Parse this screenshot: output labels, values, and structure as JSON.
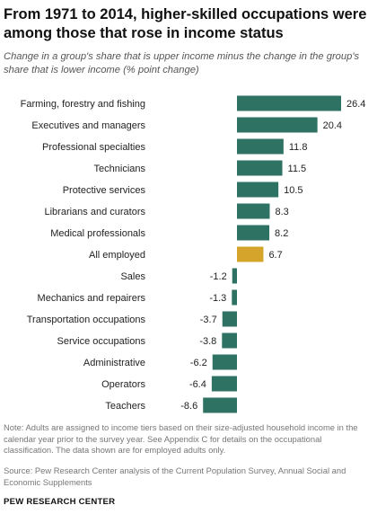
{
  "title": "From 1971 to 2014, higher-skilled occupations were among those that rose in income status",
  "subtitle": "Change in a group's share that is upper income minus the change in the group's share that is lower income (% point change)",
  "chart_data": {
    "type": "bar",
    "orientation": "horizontal",
    "categories": [
      "Farming, forestry and fishing",
      "Executives and managers",
      "Professional specialties",
      "Technicians",
      "Protective services",
      "Librarians and curators",
      "Medical professionals",
      "All employed",
      "Sales",
      "Mechanics and repairers",
      "Transportation occupations",
      "Service occupations",
      "Administrative",
      "Operators",
      "Teachers"
    ],
    "values": [
      26.4,
      20.4,
      11.8,
      11.5,
      10.5,
      8.3,
      8.2,
      6.7,
      -1.2,
      -1.3,
      -3.7,
      -3.8,
      -6.2,
      -6.4,
      -8.6
    ],
    "value_labels": [
      "26.4",
      "20.4",
      "11.8",
      "11.5",
      "10.5",
      "8.3",
      "8.2",
      "6.7",
      "-1.2",
      "-1.3",
      "-3.7",
      "-3.8",
      "-6.2",
      "-6.4",
      "-8.6"
    ],
    "highlight_category": "All employed",
    "colors": {
      "bar": "#2e7263",
      "highlight": "#d4a52a"
    },
    "grid": false,
    "legend": "none"
  },
  "note": "Note: Adults are assigned to income tiers based on their size-adjusted household income in the calendar year prior to the survey year. See Appendix C for details on the occupational classification. The data shown are for employed adults only.",
  "source": "Source: Pew Research Center analysis of the Current Population Survey, Annual Social and Economic Supplements",
  "brand": "PEW RESEARCH CENTER"
}
